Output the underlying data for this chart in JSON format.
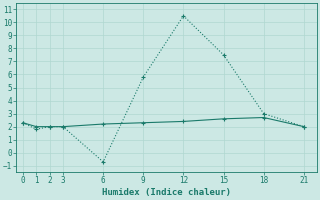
{
  "xlabel": "Humidex (Indice chaleur)",
  "x": [
    0,
    1,
    2,
    3,
    6,
    9,
    12,
    15,
    18,
    21
  ],
  "line1_y": [
    2.3,
    1.8,
    2.0,
    2.0,
    -0.7,
    5.8,
    10.5,
    7.5,
    3.0,
    2.0
  ],
  "line2_y": [
    2.3,
    2.0,
    2.0,
    2.0,
    2.2,
    2.3,
    2.4,
    2.6,
    2.7,
    2.0
  ],
  "line_color": "#1a7a6a",
  "bg_color": "#cce8e4",
  "grid_color": "#b0d8d0",
  "ylim": [
    -1.5,
    11.5
  ],
  "xlim": [
    -0.5,
    22
  ],
  "yticks": [
    -1,
    0,
    1,
    2,
    3,
    4,
    5,
    6,
    7,
    8,
    9,
    10,
    11
  ],
  "xticks": [
    0,
    1,
    2,
    3,
    6,
    9,
    12,
    15,
    18,
    21
  ],
  "markersize": 3,
  "linewidth": 0.8,
  "tick_fontsize": 5.5,
  "xlabel_fontsize": 6.5
}
